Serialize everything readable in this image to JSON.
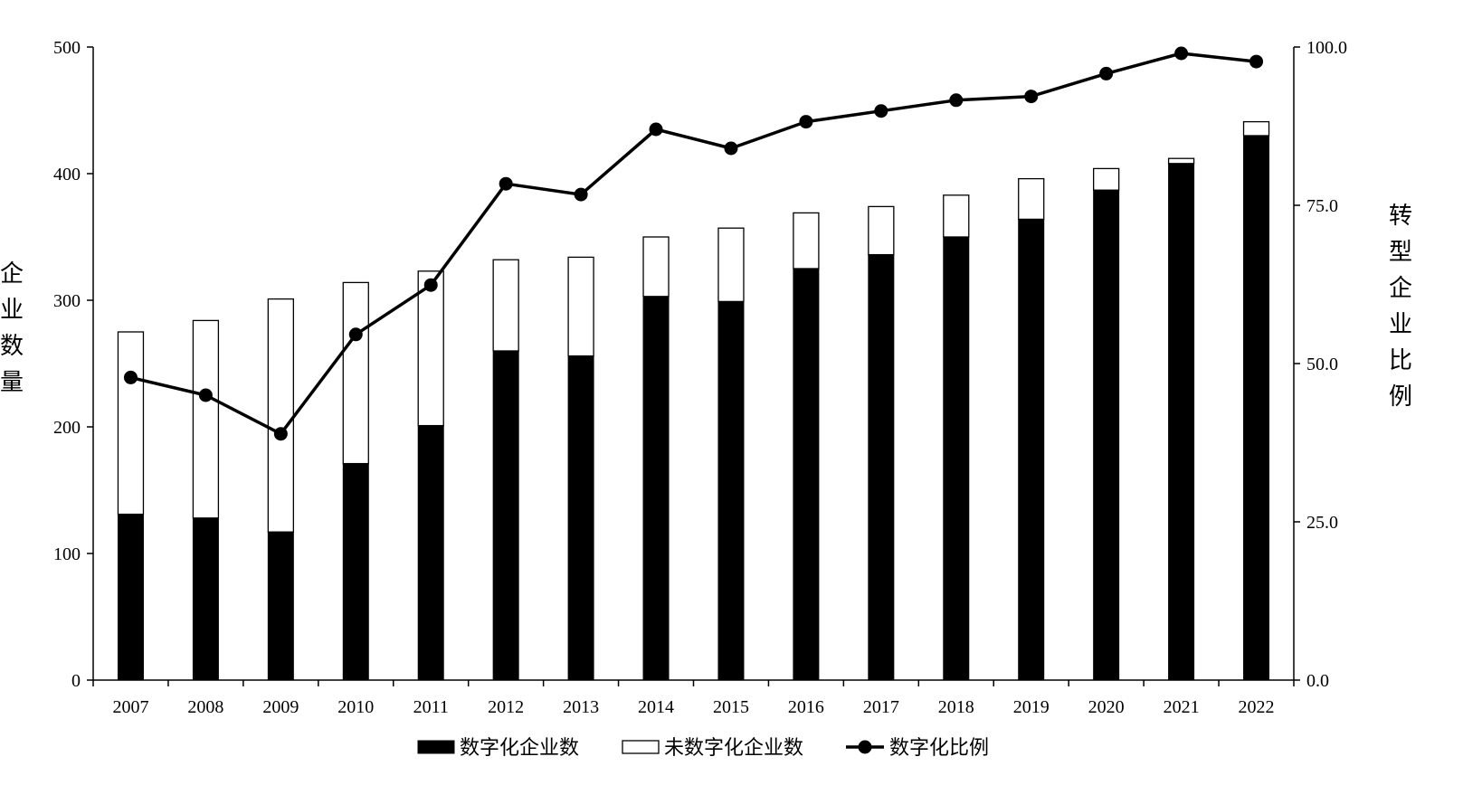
{
  "chart_data": {
    "type": "bar",
    "stacked": true,
    "categories": [
      "2007",
      "2008",
      "2009",
      "2010",
      "2011",
      "2012",
      "2013",
      "2014",
      "2015",
      "2016",
      "2017",
      "2018",
      "2019",
      "2020",
      "2021",
      "2022"
    ],
    "series": [
      {
        "name": "数字化企业数",
        "kind": "bar",
        "axis": "left",
        "color": "#000000",
        "values": [
          131,
          128,
          117,
          171,
          201,
          260,
          256,
          303,
          299,
          325,
          336,
          350,
          364,
          387,
          408,
          430
        ]
      },
      {
        "name": "未数字化企业数",
        "kind": "bar",
        "axis": "left",
        "color": "#ffffff",
        "values": [
          144,
          156,
          184,
          143,
          122,
          72,
          78,
          47,
          58,
          44,
          38,
          33,
          32,
          17,
          4,
          11
        ]
      },
      {
        "name": "数字化比例",
        "kind": "line",
        "axis": "right",
        "color": "#000000",
        "values": [
          47.8,
          45.0,
          38.9,
          54.6,
          62.4,
          78.4,
          76.7,
          87.0,
          84.0,
          88.2,
          89.9,
          91.6,
          92.2,
          95.8,
          99.0,
          97.7
        ]
      }
    ],
    "ylabel": "企业数量",
    "y2label": "转型企业比例",
    "ylim": [
      0,
      500
    ],
    "y2lim": [
      0,
      100
    ],
    "yticks": [
      "0",
      "100",
      "200",
      "300",
      "400",
      "500"
    ],
    "y2ticks": [
      "0.0",
      "25.0",
      "50.0",
      "75.0",
      "100.0"
    ],
    "legend_placement": "bottom-center",
    "grid": false
  }
}
